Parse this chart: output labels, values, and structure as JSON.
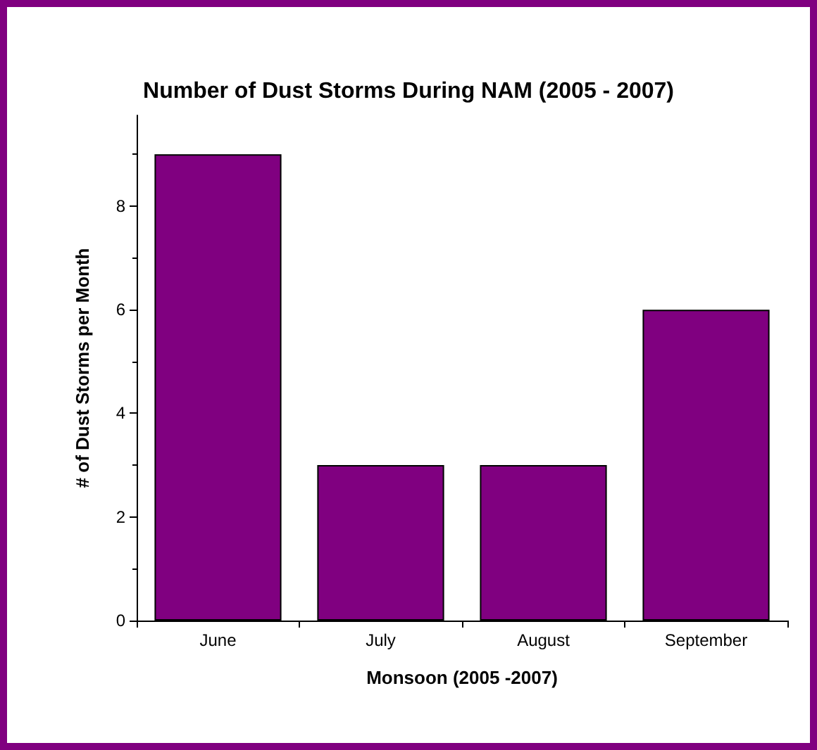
{
  "chart_data": {
    "type": "bar",
    "title": "Number of Dust Storms During NAM (2005 - 2007)",
    "xlabel": "Monsoon (2005 -2007)",
    "ylabel": "# of Dust Storms per Month",
    "categories": [
      "June",
      "July",
      "August",
      "September"
    ],
    "values": [
      9,
      3,
      3,
      6
    ],
    "color": "#800080",
    "ylim": [
      0,
      9.75
    ],
    "yticks": [
      0,
      2,
      4,
      6,
      8
    ],
    "grid": false
  }
}
